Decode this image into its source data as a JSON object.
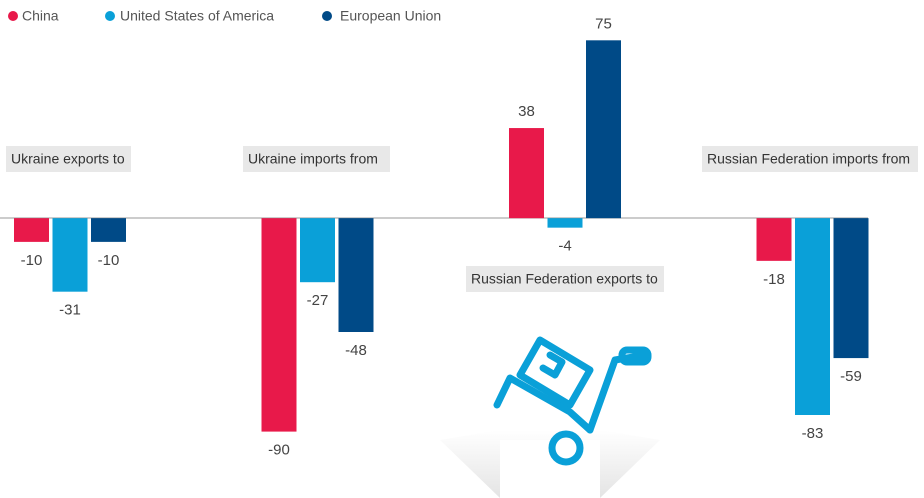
{
  "chart_data": {
    "type": "bar",
    "categories": [
      "Ukraine exports to",
      "Ukraine imports from",
      "Russian Federation exports to",
      "Russian Federation imports from"
    ],
    "series": [
      {
        "name": "China",
        "color": "#e8194a",
        "values": [
          -10,
          -90,
          38,
          -18
        ]
      },
      {
        "name": "United States of America",
        "color": "#0aa0d8",
        "values": [
          -31,
          -27,
          -4,
          -83
        ]
      },
      {
        "name": "European Union",
        "color": "#004a87",
        "values": [
          -10,
          -48,
          75,
          -59
        ]
      }
    ],
    "ylim": [
      -118,
      92
    ],
    "legend": "top-left"
  }
}
